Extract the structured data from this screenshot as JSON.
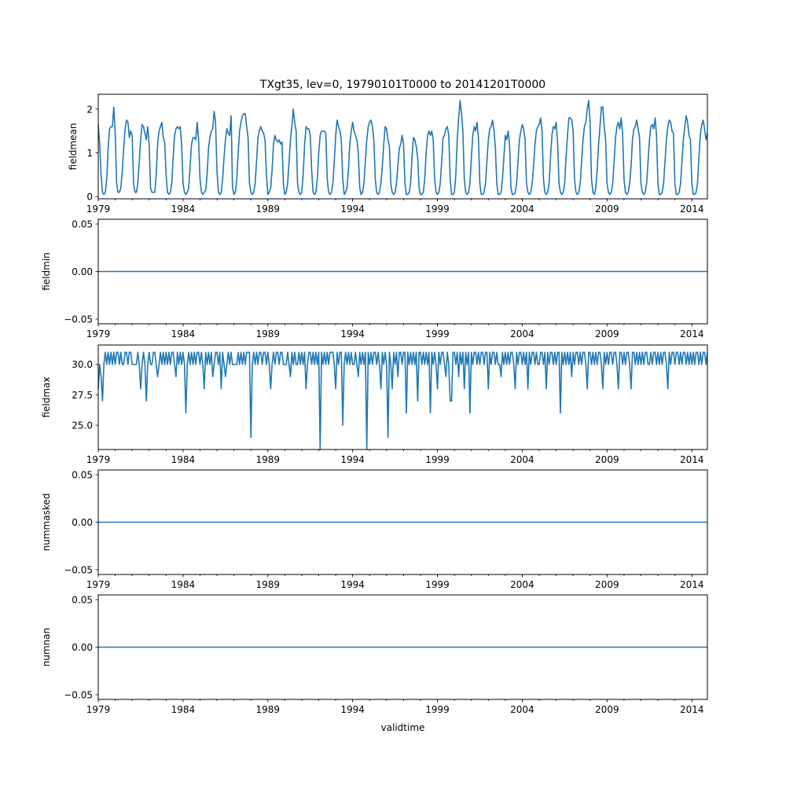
{
  "figure": {
    "title": "TXgt35, lev=0, 19790101T0000 to 20141201T0000",
    "xlabel": "validtime"
  },
  "colors": {
    "line": "#1f77b4",
    "axes": "#000000",
    "background": "#ffffff"
  },
  "chart_data": [
    {
      "type": "line",
      "ylabel": "fieldmean",
      "xlim": [
        "1979-01",
        "2014-12"
      ],
      "ylim": [
        -0.05,
        2.34
      ],
      "yticks": [
        {
          "value": 0,
          "label": "0"
        },
        {
          "value": 1,
          "label": "1"
        },
        {
          "value": 2,
          "label": "2"
        }
      ],
      "xticks": [
        "1979",
        "1984",
        "1989",
        "1994",
        "1999",
        "2004",
        "2009",
        "2014"
      ],
      "series": [
        {
          "values": [
            1.65,
            1.2,
            0.5,
            0.1,
            0.05,
            0.1,
            0.4,
            1.1,
            1.55,
            1.6,
            1.6,
            2.05,
            1.45,
            0.3,
            0.1,
            0.1,
            0.2,
            0.6,
            1.1,
            1.55,
            1.75,
            1.7,
            1.35,
            1.5,
            1.4,
            0.3,
            0.1,
            0.1,
            0.3,
            0.8,
            1.3,
            1.65,
            1.6,
            1.45,
            1.3,
            1.6,
            1.2,
            0.2,
            0.1,
            0.1,
            0.1,
            0.5,
            1.2,
            1.5,
            1.6,
            1.7,
            1.35,
            1.25,
            0.5,
            0.1,
            0.05,
            0.1,
            0.3,
            0.9,
            1.4,
            1.55,
            1.6,
            1.55,
            1.6,
            1.2,
            0.3,
            0.1,
            0.05,
            0.1,
            0.2,
            0.7,
            1.2,
            1.35,
            1.35,
            1.3,
            1.7,
            1.3,
            0.4,
            0.1,
            0.05,
            0.1,
            0.15,
            0.5,
            1.1,
            1.35,
            1.5,
            1.55,
            1.95,
            1.7,
            0.6,
            0.1,
            0.05,
            0.1,
            0.4,
            0.9,
            1.3,
            1.55,
            1.45,
            1.4,
            1.85,
            0.2,
            0.05,
            0.1,
            0.4,
            1.0,
            1.5,
            1.7,
            1.85,
            1.9,
            1.9,
            1.6,
            1.35,
            0.3,
            0.1,
            0.05,
            0.1,
            0.3,
            0.8,
            1.35,
            1.5,
            1.6,
            1.5,
            1.45,
            1.3,
            0.5,
            0.05,
            0.1,
            0.2,
            0.6,
            1.2,
            1.4,
            1.3,
            1.25,
            1.3,
            1.2,
            1.25,
            0.3,
            0.05,
            0.1,
            0.3,
            0.8,
            1.3,
            1.6,
            2.0,
            1.7,
            1.5,
            0.3,
            0.1,
            0.05,
            0.1,
            0.5,
            1.2,
            1.6,
            1.55,
            1.55,
            1.4,
            0.6,
            0.1,
            0.05,
            0.1,
            0.4,
            1.0,
            1.4,
            1.5,
            1.5,
            1.5,
            1.45,
            0.4,
            0.1,
            0.05,
            0.1,
            0.3,
            0.8,
            1.4,
            1.75,
            1.6,
            1.5,
            1.3,
            0.4,
            0.05,
            0.1,
            0.2,
            0.6,
            1.2,
            1.5,
            1.7,
            1.5,
            1.4,
            1.3,
            1.0,
            0.2,
            0.05,
            0.1,
            0.3,
            0.8,
            1.3,
            1.6,
            1.7,
            1.75,
            1.6,
            1.3,
            0.4,
            0.1,
            0.05,
            0.1,
            0.3,
            0.7,
            1.2,
            1.6,
            1.55,
            1.3,
            1.15,
            0.3,
            0.1,
            0.05,
            0.1,
            0.3,
            0.7,
            1.1,
            1.2,
            1.4,
            1.2,
            0.3,
            0.05,
            0.05,
            0.1,
            0.3,
            0.9,
            1.35,
            1.3,
            1.15,
            0.9,
            0.2,
            0.05,
            0.05,
            0.1,
            0.4,
            1.0,
            1.4,
            1.5,
            1.4,
            1.5,
            1.3,
            0.4,
            0.1,
            0.05,
            0.1,
            0.3,
            0.8,
            1.35,
            1.4,
            1.55,
            1.6,
            1.4,
            0.4,
            0.05,
            0.05,
            0.1,
            0.5,
            1.3,
            1.8,
            2.2,
            1.9,
            1.5,
            0.4,
            0.1,
            0.05,
            0.1,
            0.3,
            0.9,
            1.4,
            1.6,
            1.5,
            1.7,
            1.35,
            0.3,
            0.05,
            0.05,
            0.1,
            0.3,
            0.8,
            1.3,
            1.55,
            1.6,
            1.75,
            1.5,
            1.1,
            0.3,
            0.05,
            0.05,
            0.1,
            0.4,
            0.9,
            1.4,
            1.3,
            1.5,
            1.2,
            0.2,
            0.05,
            0.05,
            0.1,
            0.3,
            0.8,
            1.3,
            1.5,
            1.65,
            1.55,
            1.3,
            0.3,
            0.1,
            0.05,
            0.1,
            0.3,
            0.7,
            1.2,
            1.5,
            1.6,
            1.65,
            1.8,
            1.5,
            0.4,
            0.1,
            0.05,
            0.1,
            0.3,
            0.9,
            1.4,
            1.6,
            1.55,
            1.7,
            1.25,
            0.3,
            0.1,
            0.05,
            0.1,
            0.3,
            0.9,
            1.4,
            1.8,
            1.8,
            1.75,
            1.5,
            0.4,
            0.1,
            0.05,
            0.1,
            0.3,
            0.8,
            1.3,
            1.6,
            1.7,
            2.0,
            2.2,
            1.7,
            0.4,
            0.1,
            0.05,
            0.2,
            0.6,
            1.2,
            1.6,
            2.05,
            2.05,
            1.6,
            1.3,
            0.3,
            0.1,
            0.05,
            0.1,
            0.3,
            0.8,
            1.35,
            1.6,
            1.7,
            1.55,
            1.8,
            1.45,
            0.4,
            0.1,
            0.05,
            0.1,
            0.3,
            0.7,
            1.3,
            1.55,
            1.6,
            1.75,
            1.55,
            1.35,
            0.3,
            0.1,
            0.05,
            0.1,
            0.3,
            0.8,
            1.3,
            1.6,
            1.65,
            1.55,
            1.8,
            1.4,
            0.3,
            0.05,
            0.05,
            0.1,
            0.3,
            0.8,
            1.3,
            1.6,
            1.75,
            1.7,
            1.5,
            1.45,
            0.3,
            0.05,
            0.05,
            0.1,
            0.3,
            0.8,
            1.3,
            1.6,
            1.85,
            1.7,
            1.4,
            1.3,
            0.3,
            0.05,
            0.05,
            0.1,
            0.3,
            0.9,
            1.4,
            1.65,
            1.75,
            1.55,
            1.3,
            1.45
          ]
        }
      ]
    },
    {
      "type": "line",
      "ylabel": "fieldmin",
      "xlim": [
        "1979-01",
        "2014-12"
      ],
      "ylim": [
        -0.055,
        0.055
      ],
      "yticks": [
        {
          "value": 0.05,
          "label": "0.05"
        },
        {
          "value": 0,
          "label": "0.00"
        },
        {
          "value": -0.05,
          "label": "−0.05"
        }
      ],
      "xticks": [
        "1979",
        "1984",
        "1989",
        "1994",
        "1999",
        "2004",
        "2009",
        "2014"
      ],
      "series": [
        {
          "constant": 0
        }
      ]
    },
    {
      "type": "line",
      "ylabel": "fieldmax",
      "xlim": [
        "1979-01",
        "2014-12"
      ],
      "ylim": [
        23.0,
        31.6
      ],
      "yticks": [
        {
          "value": 30,
          "label": "30.0"
        },
        {
          "value": 27.5,
          "label": "27.5"
        },
        {
          "value": 25,
          "label": "25.0"
        }
      ],
      "xticks": [
        "1979",
        "1984",
        "1989",
        "1994",
        "1999",
        "2004",
        "2009",
        "2014"
      ],
      "series": [
        {
          "values": [
            28,
            30,
            29,
            27,
            30,
            31,
            30,
            31,
            30,
            31,
            30,
            31,
            30,
            31,
            31,
            30,
            31,
            30,
            30,
            31,
            31,
            30,
            31,
            31,
            30,
            30,
            30,
            30,
            31,
            30,
            28,
            30,
            31,
            30,
            27,
            30,
            31,
            30,
            30,
            31,
            31,
            30,
            29,
            30,
            31,
            30,
            31,
            30,
            31,
            30,
            31,
            30,
            31,
            31,
            30,
            29,
            31,
            30,
            31,
            30,
            31,
            30,
            26,
            30,
            31,
            30,
            31,
            30,
            31,
            30,
            31,
            31,
            30,
            31,
            30,
            28,
            31,
            30,
            31,
            30,
            31,
            29,
            30,
            31,
            31,
            30,
            31,
            28,
            31,
            30,
            29,
            30,
            31,
            30,
            31,
            30,
            30,
            30,
            30,
            31,
            30,
            31,
            30,
            31,
            30,
            31,
            31,
            31,
            24,
            30,
            31,
            30,
            31,
            30,
            31,
            31,
            30,
            31,
            31,
            30,
            31,
            30,
            28,
            30,
            31,
            30,
            31,
            31,
            30,
            31,
            31,
            30,
            30,
            30,
            31,
            30,
            29,
            31,
            30,
            31,
            30,
            30,
            31,
            30,
            31,
            30,
            31,
            28,
            30,
            31,
            31,
            30,
            31,
            30,
            31,
            30,
            31,
            23,
            31,
            30,
            31,
            30,
            31,
            30,
            31,
            31,
            31,
            30,
            28,
            31,
            30,
            31,
            31,
            25,
            30,
            31,
            30,
            31,
            30,
            31,
            30,
            30,
            31,
            30,
            29,
            31,
            30,
            31,
            30,
            31,
            23,
            31,
            30,
            31,
            30,
            31,
            31,
            30,
            31,
            30,
            28,
            31,
            30,
            31,
            30,
            24,
            31,
            30,
            28,
            31,
            30,
            31,
            29,
            31,
            31,
            30,
            31,
            31,
            26,
            31,
            30,
            31,
            30,
            31,
            30,
            31,
            27,
            31,
            31,
            30,
            31,
            30,
            31,
            30,
            31,
            26,
            31,
            30,
            31,
            30,
            28,
            31,
            30,
            31,
            31,
            30,
            29,
            31,
            30,
            27,
            27,
            31,
            31,
            30,
            31,
            29,
            31,
            30,
            31,
            28,
            31,
            30,
            31,
            26,
            31,
            30,
            31,
            31,
            30,
            31,
            30,
            31,
            31,
            30,
            31,
            31,
            28,
            31,
            30,
            31,
            31,
            30,
            31,
            30,
            30,
            29,
            31,
            30,
            31,
            30,
            31,
            30,
            31,
            31,
            30,
            28,
            31,
            30,
            31,
            31,
            30,
            31,
            30,
            31,
            28,
            31,
            30,
            31,
            31,
            30,
            31,
            30,
            30,
            31,
            31,
            30,
            31,
            28,
            31,
            30,
            31,
            31,
            30,
            31,
            30,
            31,
            31,
            26,
            31,
            30,
            31,
            30,
            31,
            30,
            31,
            29,
            31,
            30,
            31,
            31,
            30,
            31,
            30,
            31,
            31,
            30,
            28,
            31,
            31,
            30,
            31,
            30,
            31,
            30,
            31,
            31,
            30,
            28,
            31,
            30,
            31,
            30,
            31,
            31,
            30,
            31,
            31,
            30,
            28,
            31,
            31,
            30,
            31,
            30,
            31,
            31,
            30,
            28,
            31,
            31,
            30,
            31,
            30,
            31,
            30,
            31,
            30,
            31,
            31,
            30,
            30,
            31,
            30,
            31,
            31,
            30,
            31,
            30,
            31,
            30,
            31,
            31,
            30,
            28,
            31,
            30,
            31,
            31,
            30,
            31,
            31,
            30,
            31,
            30,
            31,
            31,
            30,
            31,
            30,
            31,
            30,
            31,
            30,
            31,
            31,
            30,
            31,
            30,
            31,
            31,
            30,
            31
          ]
        }
      ]
    },
    {
      "type": "line",
      "ylabel": "nummasked",
      "xlim": [
        "1979-01",
        "2014-12"
      ],
      "ylim": [
        -0.055,
        0.055
      ],
      "yticks": [
        {
          "value": 0.05,
          "label": "0.05"
        },
        {
          "value": 0,
          "label": "0.00"
        },
        {
          "value": -0.05,
          "label": "−0.05"
        }
      ],
      "xticks": [
        "1979",
        "1984",
        "1989",
        "1994",
        "1999",
        "2004",
        "2009",
        "2014"
      ],
      "series": [
        {
          "constant": 0
        }
      ]
    },
    {
      "type": "line",
      "ylabel": "numnan",
      "xlim": [
        "1979-01",
        "2014-12"
      ],
      "ylim": [
        -0.055,
        0.055
      ],
      "yticks": [
        {
          "value": 0.05,
          "label": "0.05"
        },
        {
          "value": 0,
          "label": "0.00"
        },
        {
          "value": -0.05,
          "label": "−0.05"
        }
      ],
      "xticks": [
        "1979",
        "1984",
        "1989",
        "1994",
        "1999",
        "2004",
        "2009",
        "2014"
      ],
      "series": [
        {
          "constant": 0
        }
      ]
    }
  ]
}
